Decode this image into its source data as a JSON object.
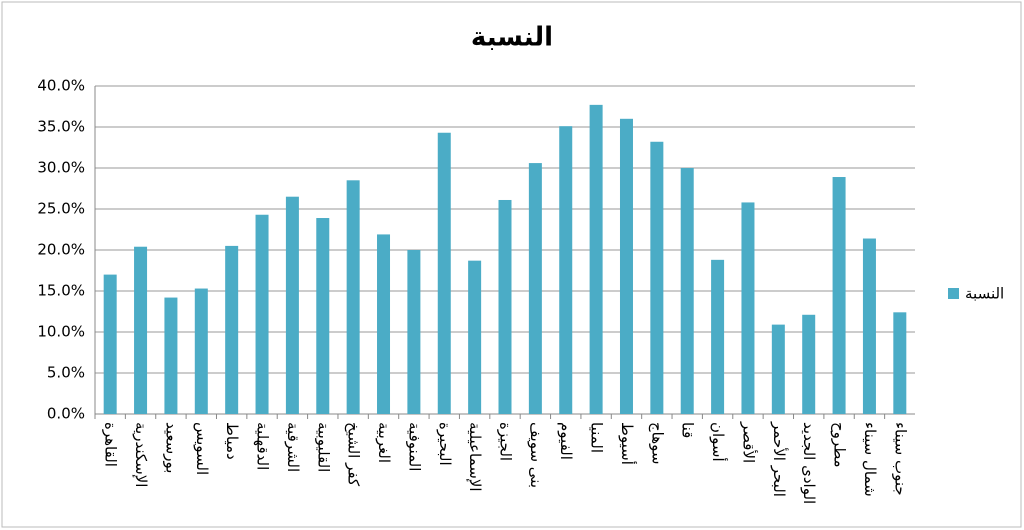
{
  "chart_data": {
    "type": "bar",
    "title": "النسبة",
    "categories": [
      "القاهرة",
      "الإسكندرية",
      "بورسعيد",
      "السويس",
      "دمياط",
      "الدقهلية",
      "الشرقية",
      "القليوبية",
      "كفر الشيخ",
      "الغربية",
      "المنوفية",
      "البحيرة",
      "الإسماعيلية",
      "الجيزة",
      "بنى سويف",
      "الفيوم",
      "المنيا",
      "أسيوط",
      "سوهاج",
      "قنا",
      "أسوان",
      "الأقصر",
      "البحر الأحمر",
      "الوادى الجديد",
      "مطروح",
      "شمال سيناء",
      "جنوب سيناء"
    ],
    "series": [
      {
        "name": "النسبة",
        "color": "#4bacc6",
        "values": [
          17.0,
          20.4,
          14.2,
          15.3,
          20.5,
          24.3,
          26.5,
          23.9,
          28.5,
          21.9,
          20.0,
          34.3,
          18.7,
          26.1,
          30.6,
          35.1,
          37.7,
          36.0,
          33.2,
          30.0,
          18.8,
          25.8,
          10.9,
          12.1,
          28.9,
          21.4,
          12.4
        ]
      }
    ],
    "ylim": [
      0,
      40
    ],
    "yticks": [
      {
        "value": 0,
        "label": "0.0%"
      },
      {
        "value": 5,
        "label": "5.0%"
      },
      {
        "value": 10,
        "label": "10.0%"
      },
      {
        "value": 15,
        "label": "15.0%"
      },
      {
        "value": 20,
        "label": "20.0%"
      },
      {
        "value": 25,
        "label": "25.0%"
      },
      {
        "value": 30,
        "label": "30.0%"
      },
      {
        "value": 35,
        "label": "35.0%"
      },
      {
        "value": 40,
        "label": "40.0%"
      }
    ],
    "grid": true,
    "legend": "right"
  }
}
